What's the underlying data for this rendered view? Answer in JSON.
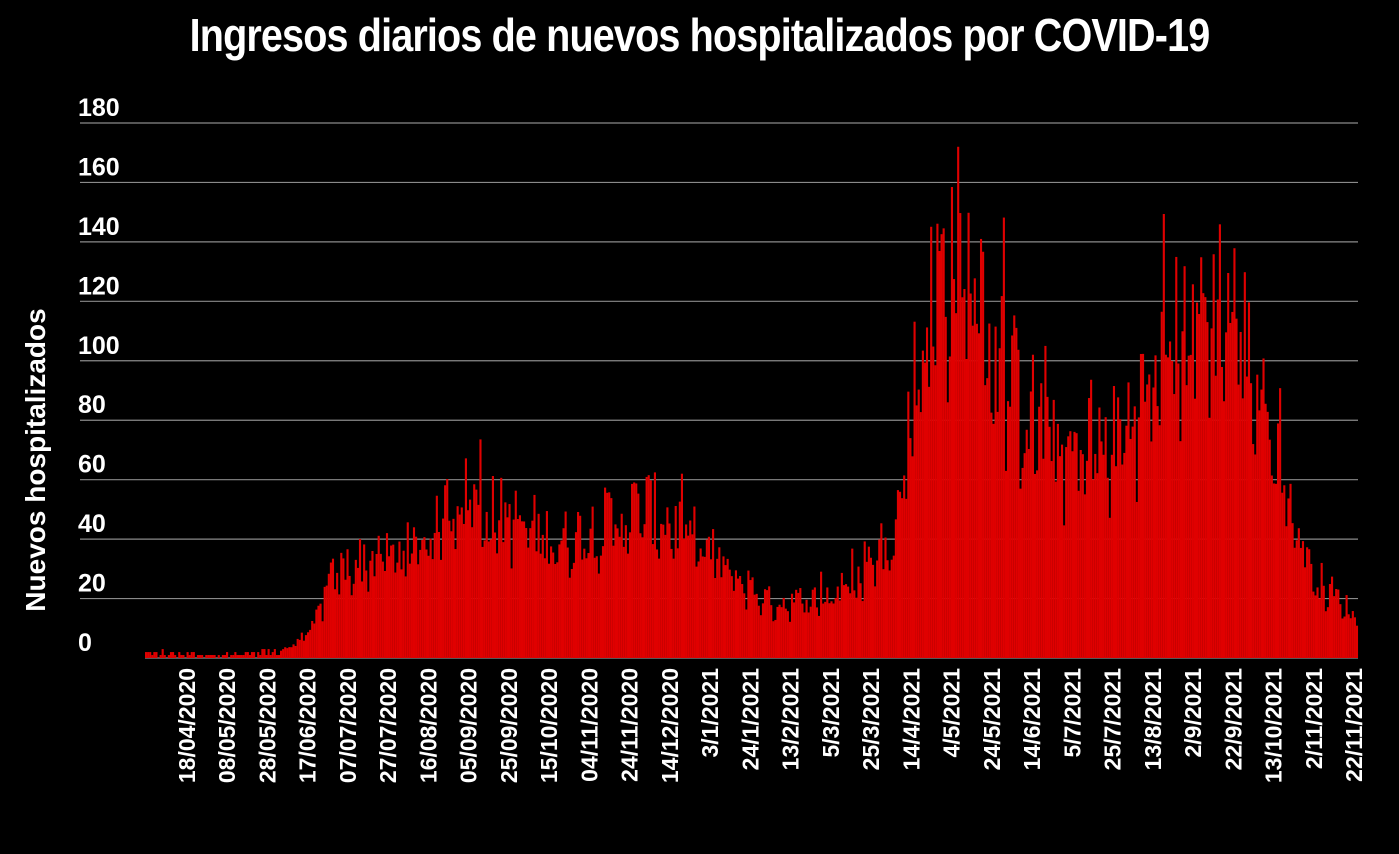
{
  "chart_data": {
    "type": "bar",
    "title": "Ingresos diarios de nuevos hospitalizados por COVID-19",
    "ylabel": "Nuevos hospitalizados",
    "xlabel": "",
    "ylim": [
      0,
      180
    ],
    "yticks": [
      0,
      20,
      40,
      60,
      80,
      100,
      120,
      140,
      160,
      180
    ],
    "grid": true,
    "bar_color": "#e00000",
    "first_date": "2020-04-18",
    "last_date": "2021-11-22",
    "x_tick_labels": [
      "18/04/2020",
      "08/05/2020",
      "28/05/2020",
      "17/06/2020",
      "07/07/2020",
      "27/07/2020",
      "16/08/2020",
      "05/09/2020",
      "25/09/2020",
      "15/10/2020",
      "04/11/2020",
      "24/11/2020",
      "14/12/2020",
      "3/1/2021",
      "24/1/2021",
      "13/2/2021",
      "5/3/2021",
      "25/3/2021",
      "14/4/2021",
      "4/5/2021",
      "24/5/2021",
      "14/6/2021",
      "5/7/2021",
      "25/7/2021",
      "13/8/2021",
      "2/9/2021",
      "22/9/2021",
      "13/10/2021",
      "2/11/2021",
      "22/11/2021"
    ],
    "trend_points": [
      {
        "date": "2020-04-18",
        "value": 2
      },
      {
        "date": "2020-05-28",
        "value": 1
      },
      {
        "date": "2020-06-17",
        "value": 2
      },
      {
        "date": "2020-06-27",
        "value": 4
      },
      {
        "date": "2020-07-07",
        "value": 10
      },
      {
        "date": "2020-07-17",
        "value": 28
      },
      {
        "date": "2020-07-27",
        "value": 33
      },
      {
        "date": "2020-08-16",
        "value": 35
      },
      {
        "date": "2020-08-26",
        "value": 38
      },
      {
        "date": "2020-09-05",
        "value": 44
      },
      {
        "date": "2020-09-15",
        "value": 58
      },
      {
        "date": "2020-09-25",
        "value": 52
      },
      {
        "date": "2020-10-15",
        "value": 47
      },
      {
        "date": "2020-11-04",
        "value": 40
      },
      {
        "date": "2020-11-24",
        "value": 46
      },
      {
        "date": "2020-12-14",
        "value": 52
      },
      {
        "date": "2021-01-03",
        "value": 44
      },
      {
        "date": "2021-01-24",
        "value": 30
      },
      {
        "date": "2021-02-13",
        "value": 19
      },
      {
        "date": "2021-03-05",
        "value": 20
      },
      {
        "date": "2021-03-25",
        "value": 25
      },
      {
        "date": "2021-04-14",
        "value": 45
      },
      {
        "date": "2021-04-24",
        "value": 100
      },
      {
        "date": "2021-05-04",
        "value": 130
      },
      {
        "date": "2021-05-14",
        "value": 142
      },
      {
        "date": "2021-05-24",
        "value": 118
      },
      {
        "date": "2021-06-14",
        "value": 88
      },
      {
        "date": "2021-07-05",
        "value": 70
      },
      {
        "date": "2021-07-25",
        "value": 72
      },
      {
        "date": "2021-08-13",
        "value": 90
      },
      {
        "date": "2021-09-02",
        "value": 118
      },
      {
        "date": "2021-09-22",
        "value": 125
      },
      {
        "date": "2021-10-13",
        "value": 75
      },
      {
        "date": "2021-10-23",
        "value": 48
      },
      {
        "date": "2021-11-02",
        "value": 28
      },
      {
        "date": "2021-11-22",
        "value": 14
      }
    ]
  }
}
